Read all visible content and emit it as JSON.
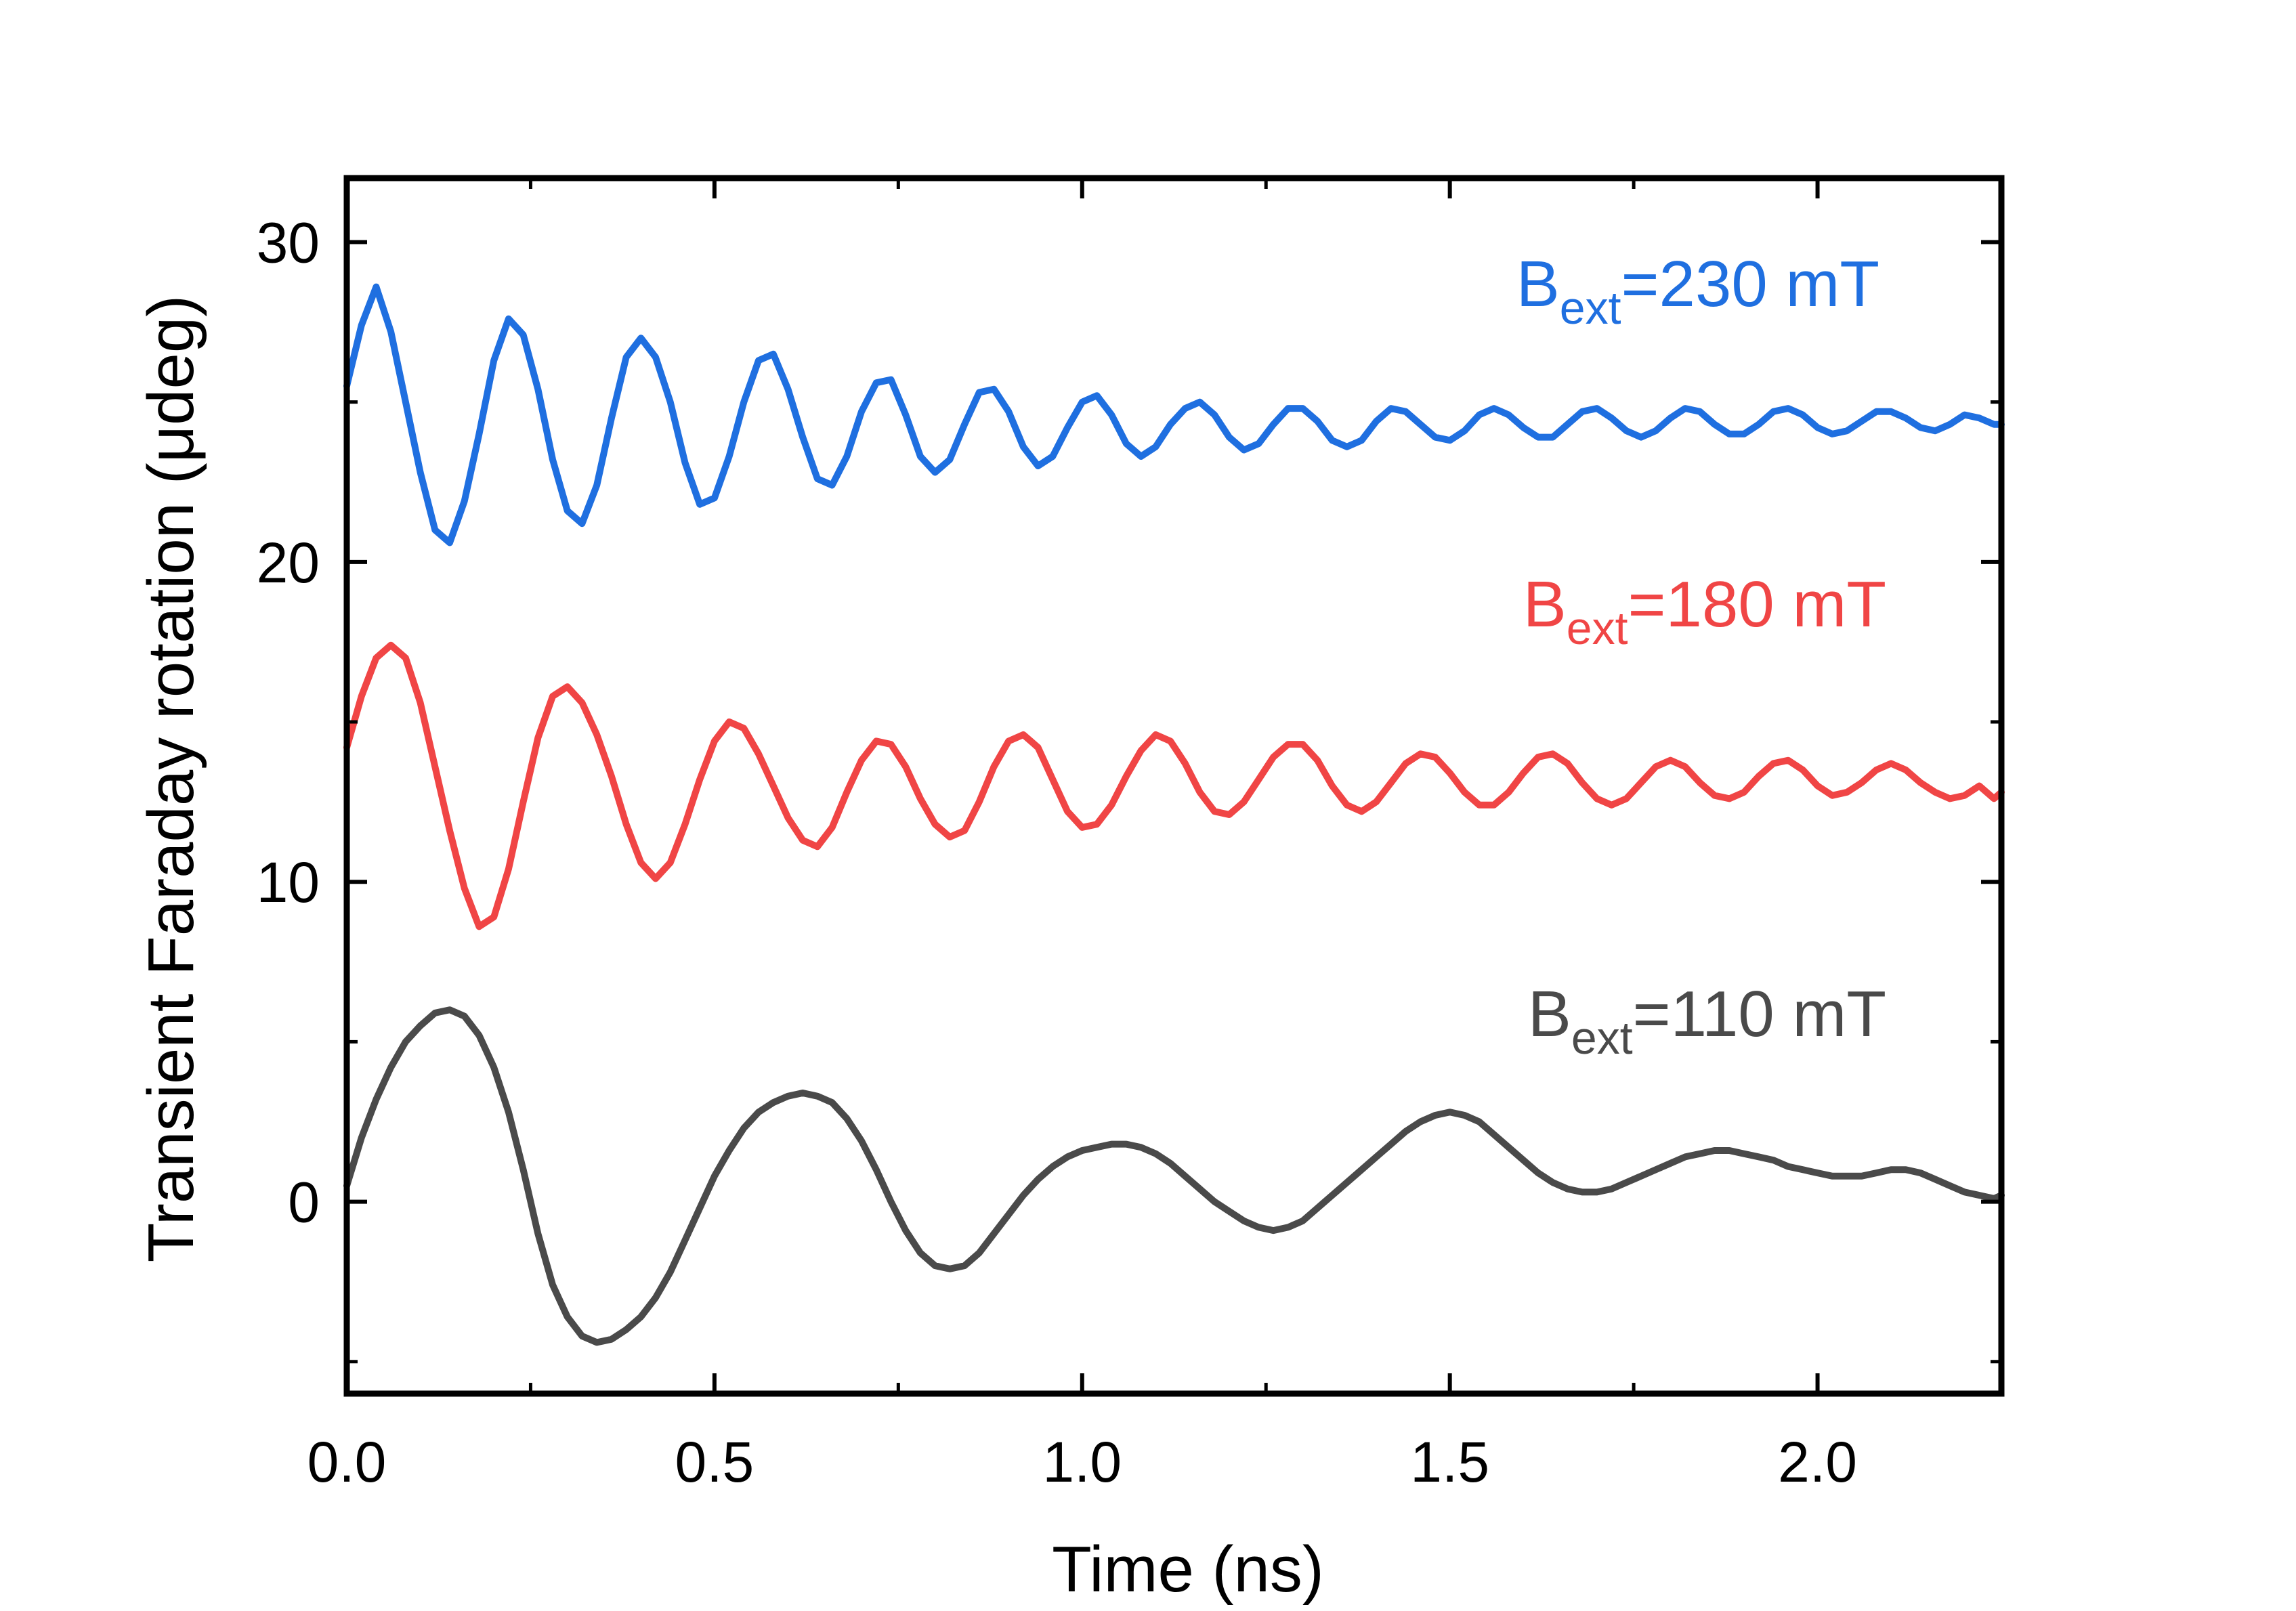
{
  "chart_data": {
    "type": "line",
    "title": "",
    "xlabel": "Time (ns)",
    "ylabel": "Transient Faraday rotation (μdeg)",
    "xlim": [
      0.0,
      2.25
    ],
    "ylim": [
      -6,
      32
    ],
    "xticks": [
      0.0,
      0.5,
      1.0,
      1.5,
      2.0
    ],
    "xtick_labels": [
      "0.0",
      "0.5",
      "1.0",
      "1.5",
      "2.0"
    ],
    "yticks": [
      0,
      10,
      20,
      30
    ],
    "ytick_labels": [
      "0",
      "10",
      "20",
      "30"
    ],
    "grid": false,
    "series": [
      {
        "name": "Bext=230 mT",
        "label_main": "B",
        "label_sub": "ext",
        "label_rest": "=230 mT",
        "color": "#1f6fe0",
        "x": [
          0.0,
          0.02,
          0.04,
          0.06,
          0.08,
          0.1,
          0.12,
          0.14,
          0.16,
          0.18,
          0.2,
          0.22,
          0.24,
          0.26,
          0.28,
          0.3,
          0.32,
          0.34,
          0.36,
          0.38,
          0.4,
          0.42,
          0.44,
          0.46,
          0.48,
          0.5,
          0.52,
          0.54,
          0.56,
          0.58,
          0.6,
          0.62,
          0.64,
          0.66,
          0.68,
          0.7,
          0.72,
          0.74,
          0.76,
          0.78,
          0.8,
          0.82,
          0.84,
          0.86,
          0.88,
          0.9,
          0.92,
          0.94,
          0.96,
          0.98,
          1.0,
          1.02,
          1.04,
          1.06,
          1.08,
          1.1,
          1.12,
          1.14,
          1.16,
          1.18,
          1.2,
          1.22,
          1.24,
          1.26,
          1.28,
          1.3,
          1.32,
          1.34,
          1.36,
          1.38,
          1.4,
          1.42,
          1.44,
          1.46,
          1.48,
          1.5,
          1.52,
          1.54,
          1.56,
          1.58,
          1.6,
          1.62,
          1.64,
          1.66,
          1.68,
          1.7,
          1.72,
          1.74,
          1.76,
          1.78,
          1.8,
          1.82,
          1.84,
          1.86,
          1.88,
          1.9,
          1.92,
          1.94,
          1.96,
          1.98,
          2.0,
          2.02,
          2.04,
          2.06,
          2.08,
          2.1,
          2.12,
          2.14,
          2.16,
          2.18,
          2.2,
          2.22,
          2.24,
          2.25
        ],
        "y": [
          25.5,
          27.4,
          28.6,
          27.2,
          25.0,
          22.8,
          21.0,
          20.6,
          21.9,
          24.0,
          26.3,
          27.6,
          27.1,
          25.4,
          23.2,
          21.6,
          21.2,
          22.4,
          24.5,
          26.4,
          27.0,
          26.4,
          25.0,
          23.1,
          21.8,
          22.0,
          23.3,
          25.0,
          26.3,
          26.5,
          25.4,
          23.9,
          22.6,
          22.4,
          23.3,
          24.7,
          25.6,
          25.7,
          24.6,
          23.3,
          22.8,
          23.2,
          24.3,
          25.3,
          25.4,
          24.7,
          23.6,
          23.0,
          23.3,
          24.2,
          25.0,
          25.2,
          24.6,
          23.7,
          23.3,
          23.6,
          24.3,
          24.8,
          25.0,
          24.6,
          23.9,
          23.5,
          23.7,
          24.3,
          24.8,
          24.8,
          24.4,
          23.8,
          23.6,
          23.8,
          24.4,
          24.8,
          24.7,
          24.3,
          23.9,
          23.8,
          24.1,
          24.6,
          24.8,
          24.6,
          24.2,
          23.9,
          23.9,
          24.3,
          24.7,
          24.8,
          24.5,
          24.1,
          23.9,
          24.1,
          24.5,
          24.8,
          24.7,
          24.3,
          24.0,
          24.0,
          24.3,
          24.7,
          24.8,
          24.6,
          24.2,
          24.0,
          24.1,
          24.4,
          24.7,
          24.7,
          24.5,
          24.2,
          24.1,
          24.3,
          24.6,
          24.5,
          24.3,
          24.3
        ]
      },
      {
        "name": "Bext=180 mT",
        "label_main": "B",
        "label_sub": "ext",
        "label_rest": "=180 mT",
        "color": "#f04545",
        "x": [
          0.0,
          0.02,
          0.04,
          0.06,
          0.08,
          0.1,
          0.12,
          0.14,
          0.16,
          0.18,
          0.2,
          0.22,
          0.24,
          0.26,
          0.28,
          0.3,
          0.32,
          0.34,
          0.36,
          0.38,
          0.4,
          0.42,
          0.44,
          0.46,
          0.48,
          0.5,
          0.52,
          0.54,
          0.56,
          0.58,
          0.6,
          0.62,
          0.64,
          0.66,
          0.68,
          0.7,
          0.72,
          0.74,
          0.76,
          0.78,
          0.8,
          0.82,
          0.84,
          0.86,
          0.88,
          0.9,
          0.92,
          0.94,
          0.96,
          0.98,
          1.0,
          1.02,
          1.04,
          1.06,
          1.08,
          1.1,
          1.12,
          1.14,
          1.16,
          1.18,
          1.2,
          1.22,
          1.24,
          1.26,
          1.28,
          1.3,
          1.32,
          1.34,
          1.36,
          1.38,
          1.4,
          1.42,
          1.44,
          1.46,
          1.48,
          1.5,
          1.52,
          1.54,
          1.56,
          1.58,
          1.6,
          1.62,
          1.64,
          1.66,
          1.68,
          1.7,
          1.72,
          1.74,
          1.76,
          1.78,
          1.8,
          1.82,
          1.84,
          1.86,
          1.88,
          1.9,
          1.92,
          1.94,
          1.96,
          1.98,
          2.0,
          2.02,
          2.04,
          2.06,
          2.08,
          2.1,
          2.12,
          2.14,
          2.16,
          2.18,
          2.2,
          2.22,
          2.24,
          2.25
        ],
        "y": [
          14.2,
          15.8,
          17.0,
          17.4,
          17.0,
          15.6,
          13.6,
          11.6,
          9.8,
          8.6,
          8.9,
          10.4,
          12.5,
          14.5,
          15.8,
          16.1,
          15.6,
          14.6,
          13.3,
          11.8,
          10.6,
          10.1,
          10.6,
          11.8,
          13.2,
          14.4,
          15.0,
          14.8,
          14.0,
          13.0,
          12.0,
          11.3,
          11.1,
          11.7,
          12.8,
          13.8,
          14.4,
          14.3,
          13.6,
          12.6,
          11.8,
          11.4,
          11.6,
          12.5,
          13.6,
          14.4,
          14.6,
          14.2,
          13.2,
          12.2,
          11.7,
          11.8,
          12.4,
          13.3,
          14.1,
          14.6,
          14.4,
          13.7,
          12.8,
          12.2,
          12.1,
          12.5,
          13.2,
          13.9,
          14.3,
          14.3,
          13.8,
          13.0,
          12.4,
          12.2,
          12.5,
          13.1,
          13.7,
          14.0,
          13.9,
          13.4,
          12.8,
          12.4,
          12.4,
          12.8,
          13.4,
          13.9,
          14.0,
          13.7,
          13.1,
          12.6,
          12.4,
          12.6,
          13.1,
          13.6,
          13.8,
          13.6,
          13.1,
          12.7,
          12.6,
          12.8,
          13.3,
          13.7,
          13.8,
          13.5,
          13.0,
          12.7,
          12.8,
          13.1,
          13.5,
          13.7,
          13.5,
          13.1,
          12.8,
          12.6,
          12.7,
          13.0,
          12.6,
          12.8
        ]
      },
      {
        "name": "Bext=110 mT",
        "label_main": "B",
        "label_sub": "ext",
        "label_rest": "=110 mT",
        "color": "#4a4a4a",
        "x": [
          0.0,
          0.02,
          0.04,
          0.06,
          0.08,
          0.1,
          0.12,
          0.14,
          0.16,
          0.18,
          0.2,
          0.22,
          0.24,
          0.26,
          0.28,
          0.3,
          0.32,
          0.34,
          0.36,
          0.38,
          0.4,
          0.42,
          0.44,
          0.46,
          0.48,
          0.5,
          0.52,
          0.54,
          0.56,
          0.58,
          0.6,
          0.62,
          0.64,
          0.66,
          0.68,
          0.7,
          0.72,
          0.74,
          0.76,
          0.78,
          0.8,
          0.82,
          0.84,
          0.86,
          0.88,
          0.9,
          0.92,
          0.94,
          0.96,
          0.98,
          1.0,
          1.02,
          1.04,
          1.06,
          1.08,
          1.1,
          1.12,
          1.14,
          1.16,
          1.18,
          1.2,
          1.22,
          1.24,
          1.26,
          1.28,
          1.3,
          1.32,
          1.34,
          1.36,
          1.38,
          1.4,
          1.42,
          1.44,
          1.46,
          1.48,
          1.5,
          1.52,
          1.54,
          1.56,
          1.58,
          1.6,
          1.62,
          1.64,
          1.66,
          1.68,
          1.7,
          1.72,
          1.74,
          1.76,
          1.78,
          1.8,
          1.82,
          1.84,
          1.86,
          1.88,
          1.9,
          1.92,
          1.94,
          1.96,
          1.98,
          2.0,
          2.02,
          2.04,
          2.06,
          2.08,
          2.1,
          2.12,
          2.14,
          2.16,
          2.18,
          2.2,
          2.22,
          2.24,
          2.25
        ],
        "y": [
          0.5,
          2.0,
          3.2,
          4.2,
          5.0,
          5.5,
          5.9,
          6.0,
          5.8,
          5.2,
          4.2,
          2.8,
          1.0,
          -1.0,
          -2.6,
          -3.6,
          -4.2,
          -4.4,
          -4.3,
          -4.0,
          -3.6,
          -3.0,
          -2.2,
          -1.2,
          -0.2,
          0.8,
          1.6,
          2.3,
          2.8,
          3.1,
          3.3,
          3.4,
          3.3,
          3.1,
          2.6,
          1.9,
          1.0,
          0.0,
          -0.9,
          -1.6,
          -2.0,
          -2.1,
          -2.0,
          -1.6,
          -1.0,
          -0.4,
          0.2,
          0.7,
          1.1,
          1.4,
          1.6,
          1.7,
          1.8,
          1.8,
          1.7,
          1.5,
          1.2,
          0.8,
          0.4,
          0.0,
          -0.3,
          -0.6,
          -0.8,
          -0.9,
          -0.8,
          -0.6,
          -0.2,
          0.2,
          0.6,
          1.0,
          1.4,
          1.8,
          2.2,
          2.5,
          2.7,
          2.8,
          2.7,
          2.5,
          2.1,
          1.7,
          1.3,
          0.9,
          0.6,
          0.4,
          0.3,
          0.3,
          0.4,
          0.6,
          0.8,
          1.0,
          1.2,
          1.4,
          1.5,
          1.6,
          1.6,
          1.5,
          1.4,
          1.3,
          1.1,
          1.0,
          0.9,
          0.8,
          0.8,
          0.8,
          0.9,
          1.0,
          1.0,
          0.9,
          0.7,
          0.5,
          0.3,
          0.2,
          0.1,
          0.2
        ]
      }
    ]
  }
}
